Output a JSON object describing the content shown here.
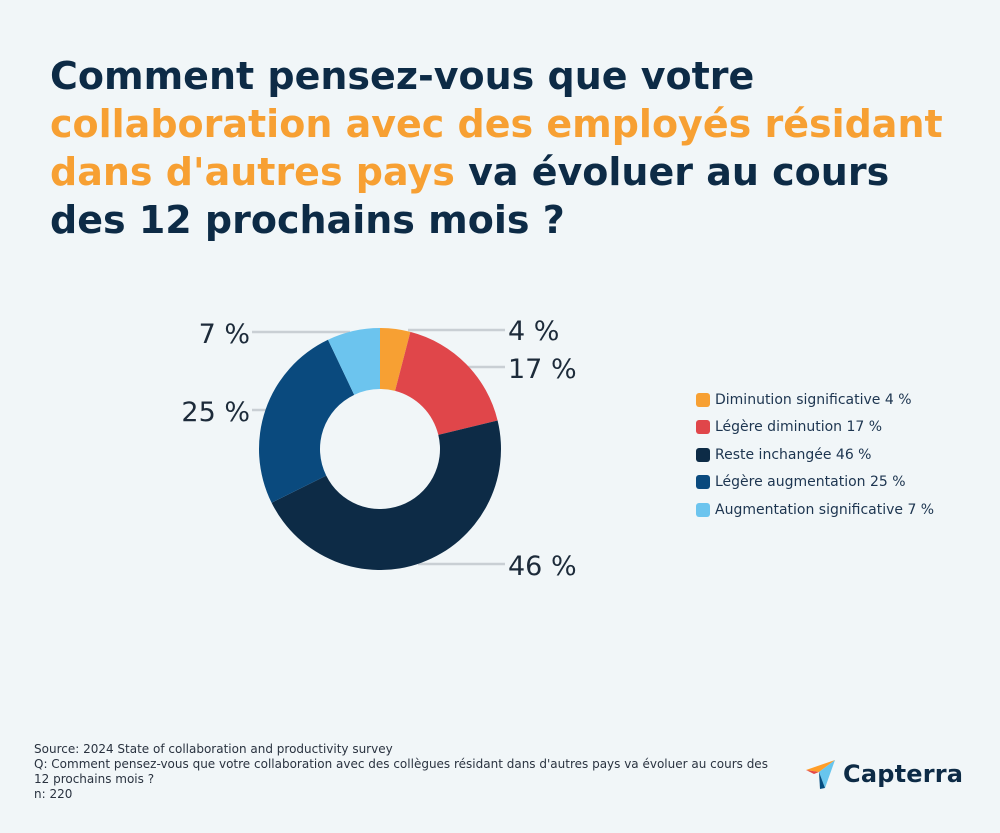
{
  "title": {
    "part1": "Comment pensez-vous que votre ",
    "highlight": "collaboration avec des employés résidant dans d'autres pays",
    "part2": " va évoluer au cours des 12 prochains mois ?"
  },
  "colors": {
    "background": "#f1f6f8",
    "title": "#0d2b46",
    "highlight": "#f7a033"
  },
  "chart_data": {
    "type": "pie",
    "donut": true,
    "categories": [
      "Diminution significative",
      "Légère diminution",
      "Reste inchangée",
      "Légère augmentation",
      "Augmentation significative"
    ],
    "values": [
      4,
      17,
      46,
      25,
      7
    ],
    "data_labels": [
      "4 %",
      "17 %",
      "46 %",
      "25 %",
      "7 %"
    ],
    "colors": [
      "#f7a033",
      "#e0464a",
      "#0d2b46",
      "#0a4a7e",
      "#6cc4ee"
    ],
    "legend": {
      "position": "right",
      "entries": [
        "Diminution significative 4 %",
        "Légère diminution 17 %",
        "Reste inchangée 46 %",
        "Légère augmentation 25 %",
        "Augmentation significative 7 %"
      ]
    }
  },
  "source": {
    "line1": "Source: 2024 State of collaboration and productivity survey",
    "line2": "Q: Comment pensez-vous que votre collaboration avec des collègues résidant dans d'autres pays va évoluer au cours des 12 prochains mois ?",
    "line3": "n: 220"
  },
  "logo": {
    "text": "Capterra",
    "icon": "capterra-arrow-icon"
  }
}
